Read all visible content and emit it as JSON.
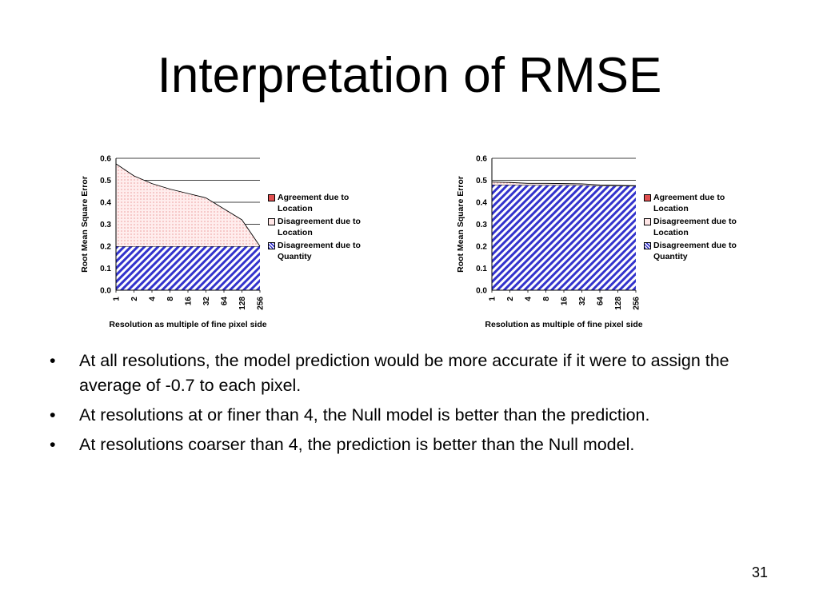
{
  "slide": {
    "title": "Interpretation of RMSE",
    "bullets": [
      "At all resolutions, the model prediction would be more accurate if it were to assign the average of -0.7 to each pixel.",
      "At resolutions at or finer than 4, the Null model is better than the prediction.",
      "At resolutions coarser than 4, the prediction is better than the Null model."
    ],
    "bullet_glyph": "•",
    "page_number": "31"
  },
  "chart_data": [
    {
      "type": "area",
      "stacked": true,
      "categories": [
        "1",
        "2",
        "4",
        "8",
        "16",
        "32",
        "64",
        "128",
        "256"
      ],
      "series": [
        {
          "name": "Disagreement due to Quantity",
          "values": [
            0.2,
            0.2,
            0.2,
            0.2,
            0.2,
            0.2,
            0.2,
            0.2,
            0.2
          ],
          "color": "#3333cc",
          "pattern": "diagonal-hatch"
        },
        {
          "name": "Disagreement due to Location",
          "values": [
            0.375,
            0.32,
            0.285,
            0.26,
            0.24,
            0.22,
            0.17,
            0.12,
            0.0
          ],
          "color": "#ffe6e6",
          "pattern": "dots"
        },
        {
          "name": "Agreement due to Location",
          "values": [
            0,
            0,
            0,
            0,
            0,
            0,
            0,
            0,
            0
          ],
          "color": "#e05050",
          "pattern": "solid"
        }
      ],
      "legend_order": [
        "Agreement due to Location",
        "Disagreement due to Location",
        "Disagreement due to Quantity"
      ],
      "legend": [
        {
          "line1": "Agreement due to",
          "line2": "Location",
          "color": "#e05050"
        },
        {
          "line1": "Disagreement due to",
          "line2": "Location",
          "color": "#ffe6e6"
        },
        {
          "line1": "Disagreement due to",
          "line2": "Quantity",
          "color": "#3333cc"
        }
      ],
      "title": "",
      "xlabel": "Resolution as multiple of fine pixel side",
      "ylabel": "Root Mean Square Error",
      "ylim": [
        0,
        0.6
      ],
      "yticks": [
        "0.0",
        "0.1",
        "0.2",
        "0.3",
        "0.4",
        "0.5",
        "0.6"
      ],
      "grid": true,
      "legend_position": "right"
    },
    {
      "type": "area",
      "stacked": true,
      "categories": [
        "1",
        "2",
        "4",
        "8",
        "16",
        "32",
        "64",
        "128",
        "256"
      ],
      "series": [
        {
          "name": "Disagreement due to Quantity",
          "values": [
            0.48,
            0.48,
            0.478,
            0.478,
            0.478,
            0.478,
            0.475,
            0.475,
            0.475
          ],
          "color": "#3333cc",
          "pattern": "diagonal-hatch"
        },
        {
          "name": "Disagreement due to Location",
          "values": [
            0.012,
            0.01,
            0.008,
            0.008,
            0.007,
            0.006,
            0.004,
            0.002,
            0.0
          ],
          "color": "#ffe6e6",
          "pattern": "dots"
        },
        {
          "name": "Agreement due to Location",
          "values": [
            0,
            0,
            0,
            0,
            0,
            0,
            0,
            0,
            0
          ],
          "color": "#e05050",
          "pattern": "solid"
        }
      ],
      "legend_order": [
        "Agreement due to Location",
        "Disagreement due to Location",
        "Disagreement due to Quantity"
      ],
      "legend": [
        {
          "line1": "Agreement due to",
          "line2": "Location",
          "color": "#e05050"
        },
        {
          "line1": "Disagreement due to",
          "line2": "Location",
          "color": "#ffe6e6"
        },
        {
          "line1": "Disagreement due to",
          "line2": "Quantity",
          "color": "#3333cc"
        }
      ],
      "title": "",
      "xlabel": "Resolution as multiple of fine pixel side",
      "ylabel": "Root Mean Square Error",
      "ylim": [
        0,
        0.6
      ],
      "yticks": [
        "0.0",
        "0.1",
        "0.2",
        "0.3",
        "0.4",
        "0.5",
        "0.6"
      ],
      "grid": true,
      "legend_position": "right"
    }
  ]
}
